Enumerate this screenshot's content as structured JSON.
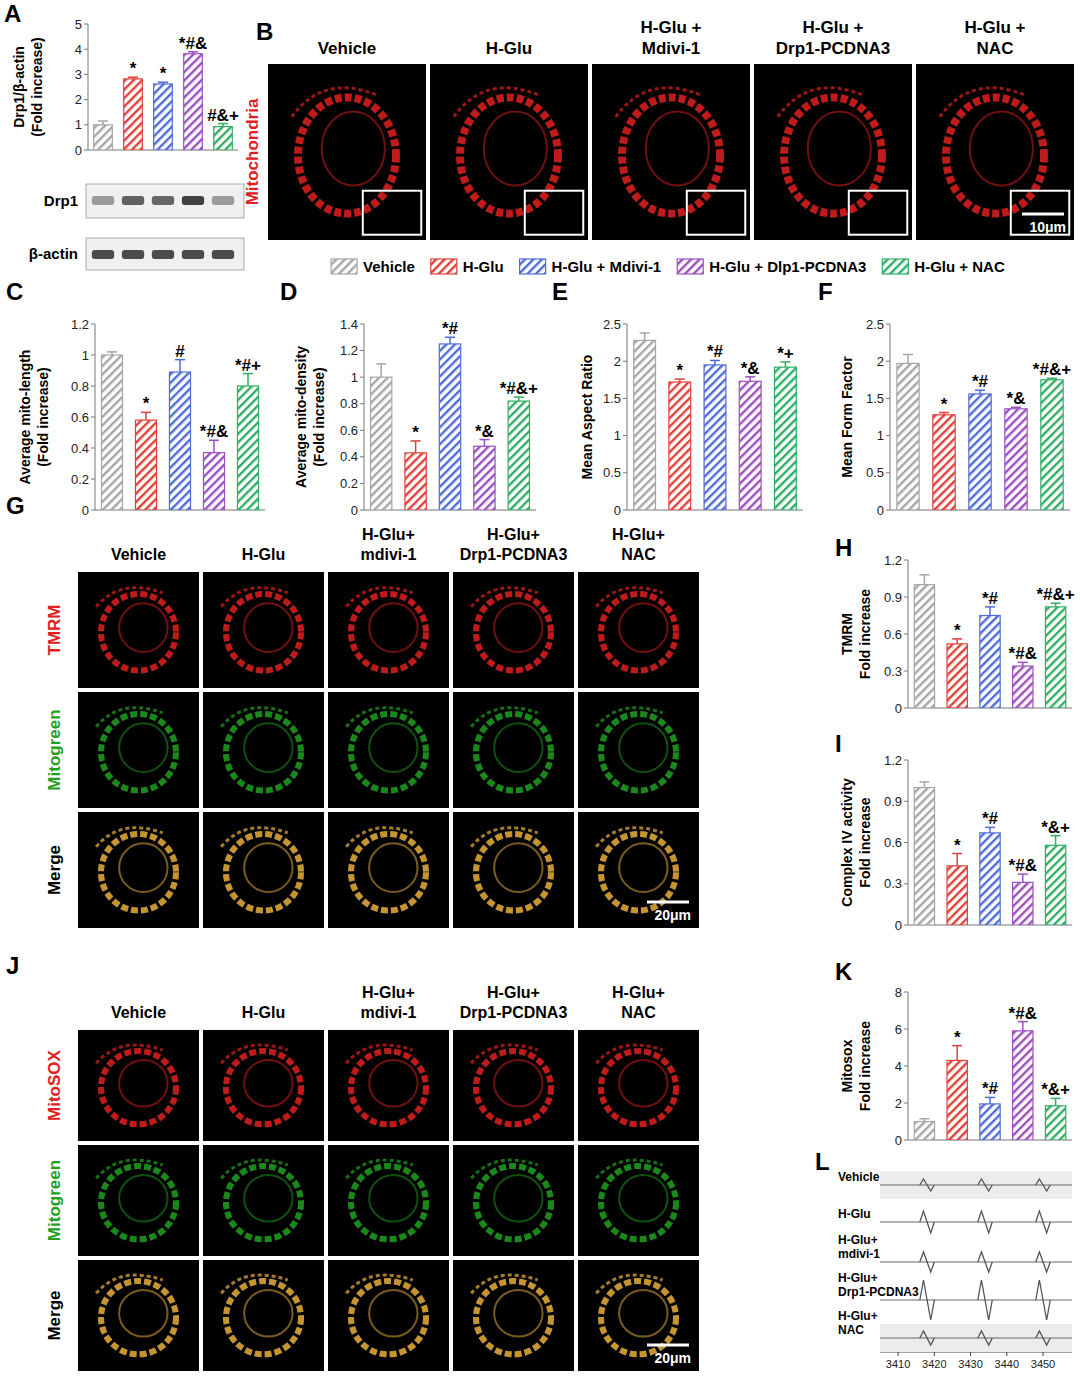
{
  "groups": [
    {
      "name": "Vehicle",
      "color": "#a6a6a6"
    },
    {
      "name": "H-Glu",
      "color": "#e0403a"
    },
    {
      "name": "H-Glu + Mdivi-1",
      "color": "#4f6bd8"
    },
    {
      "name": "H-Glu + Dlp1-PCDNA3",
      "color": "#9b4fc0"
    },
    {
      "name": "H-Glu + NAC",
      "color": "#2fae64"
    }
  ],
  "chart_data": [
    {
      "panel": "A",
      "type": "bar",
      "y_label": [
        "Drp1/β-actin",
        "(Fold increase)"
      ],
      "values": [
        1.0,
        2.82,
        2.62,
        3.82,
        0.93
      ],
      "errors": [
        0.15,
        0.07,
        0.07,
        0.08,
        0.12
      ],
      "significance": [
        null,
        "*",
        "*",
        "*#&",
        "#&+"
      ],
      "ylim": [
        0,
        5
      ],
      "yticks": [
        0,
        1,
        2,
        3,
        4,
        5
      ],
      "blot": {
        "labels": [
          "Drp1",
          "β-actin"
        ]
      }
    },
    {
      "panel": "C",
      "type": "bar",
      "y_label": [
        "Average mito-length",
        "(Fold increase)"
      ],
      "values": [
        1.0,
        0.58,
        0.89,
        0.37,
        0.8
      ],
      "errors": [
        0.02,
        0.05,
        0.08,
        0.08,
        0.08
      ],
      "significance": [
        null,
        "*",
        "#",
        "*#&",
        "*#+"
      ],
      "ylim": [
        0,
        1.2
      ],
      "yticks": [
        0,
        0.2,
        0.4,
        0.6,
        0.8,
        1,
        1.2
      ]
    },
    {
      "panel": "D",
      "type": "bar",
      "y_label": [
        "Average mito-density",
        "(Fold increase)"
      ],
      "values": [
        1.0,
        0.43,
        1.25,
        0.48,
        0.82
      ],
      "errors": [
        0.1,
        0.09,
        0.05,
        0.05,
        0.03
      ],
      "significance": [
        null,
        "*",
        "*#",
        "*&",
        "*#&+"
      ],
      "ylim": [
        0,
        1.4
      ],
      "yticks": [
        0,
        0.2,
        0.4,
        0.6,
        0.8,
        1,
        1.2,
        1.4
      ]
    },
    {
      "panel": "E",
      "type": "bar",
      "y_label": [
        "Mean Aspect Ratio"
      ],
      "values": [
        2.28,
        1.72,
        1.95,
        1.73,
        1.92
      ],
      "errors": [
        0.1,
        0.04,
        0.06,
        0.06,
        0.07
      ],
      "significance": [
        null,
        "*",
        "*#",
        "*&",
        "*+"
      ],
      "ylim": [
        0,
        2.5
      ],
      "yticks": [
        0,
        0.5,
        1,
        1.5,
        2,
        2.5
      ]
    },
    {
      "panel": "F",
      "type": "bar",
      "y_label": [
        "Mean Form Factor"
      ],
      "values": [
        1.97,
        1.28,
        1.56,
        1.36,
        1.75
      ],
      "errors": [
        0.12,
        0.03,
        0.05,
        0.02,
        0.02
      ],
      "significance": [
        null,
        "*",
        "*#",
        "*&",
        "*#&+"
      ],
      "ylim": [
        0,
        2.5
      ],
      "yticks": [
        0,
        0.5,
        1,
        1.5,
        2,
        2.5
      ]
    },
    {
      "panel": "H",
      "type": "bar",
      "y_label": [
        "TMRM",
        "Fold increase"
      ],
      "values": [
        1.0,
        0.52,
        0.75,
        0.34,
        0.82
      ],
      "errors": [
        0.08,
        0.04,
        0.07,
        0.03,
        0.03
      ],
      "significance": [
        null,
        "*",
        "*#",
        "*#&",
        "*#&+"
      ],
      "ylim": [
        0,
        1.2
      ],
      "yticks": [
        0,
        0.3,
        0.6,
        0.9,
        1.2
      ]
    },
    {
      "panel": "I",
      "type": "bar",
      "y_label": [
        "Complex IV activity",
        "Fold increase"
      ],
      "values": [
        1.0,
        0.43,
        0.67,
        0.31,
        0.58
      ],
      "errors": [
        0.04,
        0.09,
        0.04,
        0.06,
        0.07
      ],
      "significance": [
        null,
        "*",
        "*#",
        "*#&",
        "*&+"
      ],
      "ylim": [
        0,
        1.2
      ],
      "yticks": [
        0,
        0.3,
        0.6,
        0.9,
        1.2
      ]
    },
    {
      "panel": "K",
      "type": "bar",
      "y_label": [
        "Mitosox",
        "Fold increase"
      ],
      "values": [
        1.0,
        4.3,
        1.95,
        5.9,
        1.85
      ],
      "errors": [
        0.15,
        0.8,
        0.35,
        0.5,
        0.4
      ],
      "significance": [
        null,
        "*",
        "*#",
        "*#&",
        "*&+"
      ],
      "ylim": [
        0,
        8
      ],
      "yticks": [
        0,
        2,
        4,
        6,
        8
      ]
    },
    {
      "panel": "L",
      "type": "line",
      "trace_labels": [
        [
          "Vehicle"
        ],
        [
          "H-Glu"
        ],
        [
          "H-Glu+",
          "mdivi-1"
        ],
        [
          "H-Glu+",
          "Drp1-PCDNA3"
        ],
        [
          "H-Glu+",
          "NAC"
        ]
      ],
      "xlim": [
        3405,
        3458
      ],
      "xticks": [
        3410,
        3420,
        3430,
        3440,
        3450
      ],
      "peaks": [
        3418,
        3434,
        3450
      ],
      "amplitudes": [
        0.3,
        0.55,
        0.5,
        1.0,
        0.35
      ]
    }
  ],
  "image_panels": [
    {
      "panel": "B",
      "columns": [
        [
          "Vehicle"
        ],
        [
          "H-Glu"
        ],
        [
          "H-Glu +",
          "Mdivi-1"
        ],
        [
          "H-Glu +",
          "Drp1-PCDNA3"
        ],
        [
          "H-Glu +",
          "NAC"
        ]
      ],
      "rows": [
        {
          "text": "Mitochondria",
          "color": "#e02020"
        }
      ],
      "scale_bar": "10μm"
    },
    {
      "panel": "G",
      "columns": [
        [
          "Vehicle"
        ],
        [
          "H-Glu"
        ],
        [
          "H-Glu+",
          "mdivi-1"
        ],
        [
          "H-Glu+",
          "Drp1-PCDNA3"
        ],
        [
          "H-Glu+",
          "NAC"
        ]
      ],
      "rows": [
        {
          "text": "TMRM",
          "color": "#e02020"
        },
        {
          "text": "Mitogreen",
          "color": "#1fa01f"
        },
        {
          "text": "Merge",
          "color": "#000000"
        }
      ],
      "scale_bar": "20μm"
    },
    {
      "panel": "J",
      "columns": [
        [
          "Vehicle"
        ],
        [
          "H-Glu"
        ],
        [
          "H-Glu+",
          "mdivi-1"
        ],
        [
          "H-Glu+",
          "Drp1-PCDNA3"
        ],
        [
          "H-Glu+",
          "NAC"
        ]
      ],
      "rows": [
        {
          "text": "MitoSOX",
          "color": "#e02020"
        },
        {
          "text": "Mitogreen",
          "color": "#1fa01f"
        },
        {
          "text": "Merge",
          "color": "#000000"
        }
      ],
      "scale_bar": "20μm"
    }
  ]
}
